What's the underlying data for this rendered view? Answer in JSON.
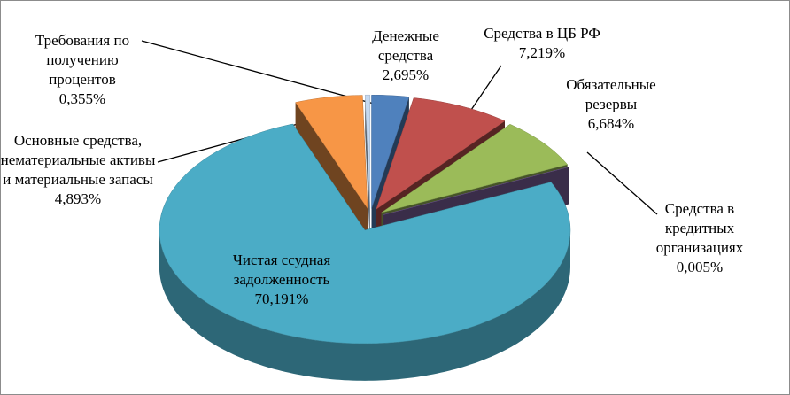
{
  "chart_data": {
    "type": "pie3d",
    "categories": [
      "Денежные средства",
      "Средства в ЦБ РФ",
      "Обязательные резервы",
      "Средства в кредитных организациях",
      "Чистая ссудная задолженность",
      "Основные средства, нематериальные активы и материальные запасы",
      "Требования по получению процентов"
    ],
    "values": [
      2.695,
      7.219,
      6.684,
      0.005,
      70.191,
      4.893,
      0.355
    ],
    "value_labels": [
      "2,695%",
      "7,219%",
      "6,684%",
      "0,005%",
      "70,191%",
      "4,893%",
      "0,355%"
    ],
    "colors": [
      "#4f81bd",
      "#c0504d",
      "#9bbb59",
      "#8064a2",
      "#4bacc6",
      "#f79646",
      "#c5d9f1"
    ]
  }
}
